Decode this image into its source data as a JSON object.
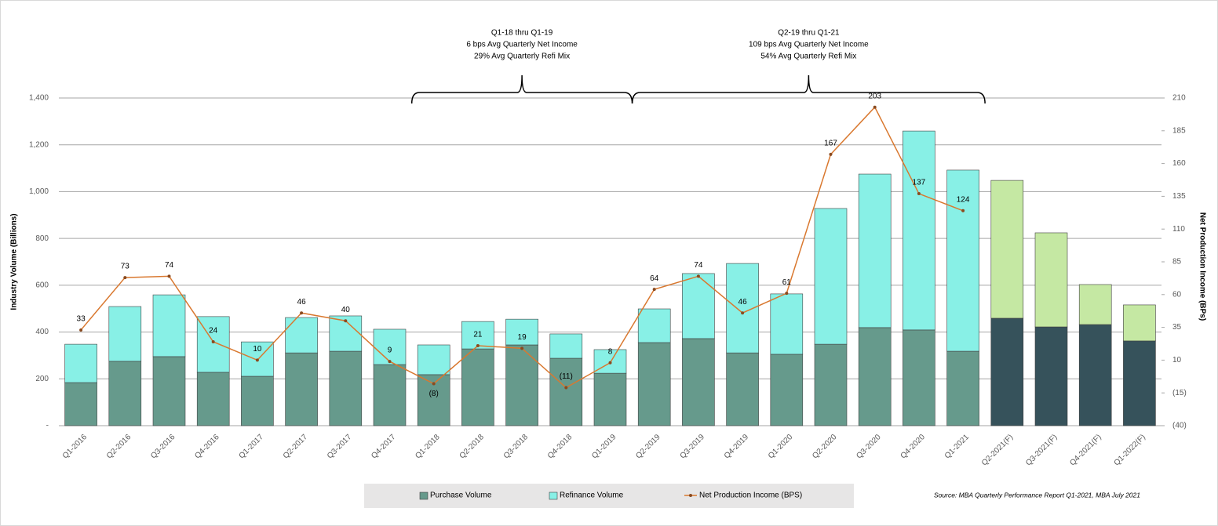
{
  "chart_data": {
    "type": "bar",
    "categories": [
      "Q1-2016",
      "Q2-2016",
      "Q3-2016",
      "Q4-2016",
      "Q1-2017",
      "Q2-2017",
      "Q3-2017",
      "Q4-2017",
      "Q1-2018",
      "Q2-2018",
      "Q3-2018",
      "Q4-2018",
      "Q1-2019",
      "Q2-2019",
      "Q3-2019",
      "Q4-2019",
      "Q1-2020",
      "Q2-2020",
      "Q3-2020",
      "Q4-2020",
      "Q1-2021",
      "Q2-2021(F)",
      "Q3-2021(F)",
      "Q4-2021(F)",
      "Q1-2022(F)"
    ],
    "series": [
      {
        "name": "Purchase Volume",
        "type": "bar",
        "color": "#669a8c",
        "colors": [
          "#669a8c",
          "#669a8c",
          "#669a8c",
          "#669a8c",
          "#669a8c",
          "#669a8c",
          "#669a8c",
          "#669a8c",
          "#669a8c",
          "#669a8c",
          "#669a8c",
          "#669a8c",
          "#669a8c",
          "#669a8c",
          "#669a8c",
          "#669a8c",
          "#669a8c",
          "#669a8c",
          "#669a8c",
          "#669a8c",
          "#669a8c",
          "#36525b",
          "#36525b",
          "#36525b",
          "#36525b"
        ],
        "values": [
          184,
          275,
          295,
          228,
          211,
          311,
          318,
          261,
          218,
          328,
          345,
          288,
          224,
          355,
          372,
          311,
          305,
          348,
          419,
          409,
          318,
          459,
          422,
          432,
          362
        ]
      },
      {
        "name": "Refinance Volume",
        "type": "bar",
        "color": "#88f0e6",
        "colors": [
          "#88f0e6",
          "#88f0e6",
          "#88f0e6",
          "#88f0e6",
          "#88f0e6",
          "#88f0e6",
          "#88f0e6",
          "#88f0e6",
          "#88f0e6",
          "#88f0e6",
          "#88f0e6",
          "#88f0e6",
          "#88f0e6",
          "#88f0e6",
          "#88f0e6",
          "#88f0e6",
          "#88f0e6",
          "#88f0e6",
          "#88f0e6",
          "#88f0e6",
          "#88f0e6",
          "#c5e8a3",
          "#c5e8a3",
          "#c5e8a3",
          "#c5e8a3"
        ],
        "values": [
          164,
          234,
          264,
          238,
          147,
          151,
          151,
          151,
          127,
          117,
          110,
          104,
          101,
          144,
          278,
          382,
          258,
          580,
          656,
          850,
          774,
          589,
          402,
          171,
          154
        ]
      },
      {
        "name": "Net Production Income (BPS)",
        "type": "line",
        "axis": "y2",
        "color": "#d9782f",
        "values": [
          33,
          73,
          74,
          24,
          10,
          46,
          40,
          9,
          -8,
          21,
          19,
          -11,
          8,
          64,
          74,
          46,
          61,
          167,
          203,
          137,
          124,
          null,
          null,
          null,
          null
        ],
        "value_labels": [
          "33",
          "73",
          "74",
          "24",
          "10",
          "46",
          "40",
          "9",
          "(8)",
          "21",
          "19",
          "(11)",
          "8",
          "64",
          "74",
          "46",
          "61",
          "167",
          "203",
          "137",
          "124",
          null,
          null,
          null,
          null
        ]
      }
    ],
    "ylabel": "Industry Volume (Billions)",
    "y2label": "Net Production Income (BPs)",
    "ylim": [
      0,
      1400
    ],
    "yticks": [
      {
        "value": 0,
        "label": "-"
      },
      200,
      400,
      600,
      800,
      {
        "value": 1000,
        "label": "1,000"
      },
      {
        "value": 1200,
        "label": "1,200"
      },
      {
        "value": 1400,
        "label": "1,400"
      }
    ],
    "y2lim": [
      -40,
      210
    ],
    "y2ticks": [
      {
        "value": -40,
        "label": "(40)"
      },
      {
        "value": -15,
        "label": "(15)"
      },
      10,
      35,
      60,
      85,
      110,
      135,
      160,
      185,
      210
    ],
    "grid": true,
    "annotations": [
      {
        "lines": [
          "Q1-18 thru Q1-19",
          "6 bps Avg Quarterly Net Income",
          "29% Avg Quarterly Refi Mix"
        ]
      },
      {
        "lines": [
          "Q2-19 thru Q1-21",
          "109 bps Avg Quarterly  Net Income",
          "54% Avg Quarterly  Refi Mix"
        ]
      }
    ],
    "source": "Source: MBA Quarterly Performance Report Q1-2021, MBA July 2021"
  }
}
